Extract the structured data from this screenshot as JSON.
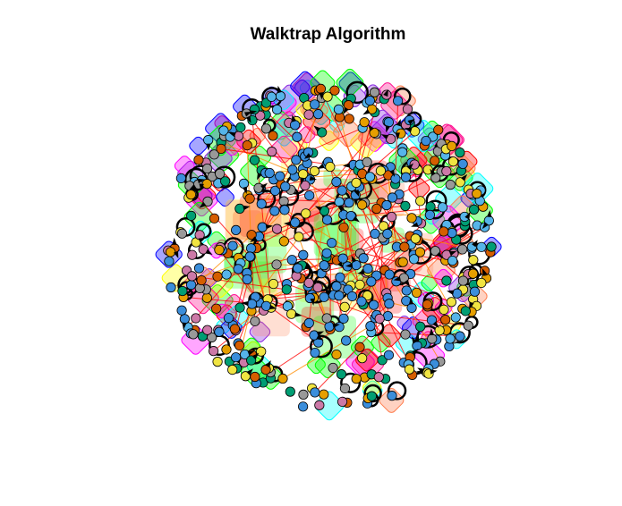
{
  "title": "Walktrap Algorithm",
  "diagram": {
    "type": "network-community-plot",
    "algorithm": "walktrap",
    "node_colors": [
      "#3b8edb",
      "#e69f00",
      "#f0e442",
      "#009e73",
      "#cc79a7",
      "#999999",
      "#56b4e9",
      "#d55e00"
    ],
    "hull_colors": [
      "#ff00ff",
      "#0000ff",
      "#00ffff",
      "#ff0000",
      "#ffff00",
      "#00ff00",
      "#ff7f50",
      "#8a2be2",
      "#ff1493"
    ],
    "edge_color": "#ff0000",
    "node_outline_color": "#000000"
  }
}
